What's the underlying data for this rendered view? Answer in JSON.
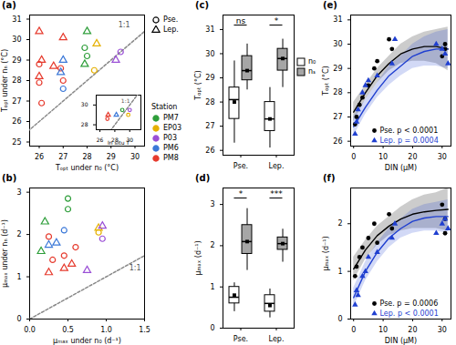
{
  "chart_data": [
    {
      "type": "scatter",
      "title": "(a)",
      "xlabel": "Tₒₚₜ under n₀ (°C)",
      "ylabel": "Tₒₚₜ under nₙ (°C)",
      "xlim": [
        25.6,
        30.4
      ],
      "ylim": [
        24.8,
        31.2
      ],
      "xticks": [
        26,
        27,
        28,
        29,
        30
      ],
      "yticks": [
        25,
        26,
        27,
        28,
        29,
        30,
        31
      ],
      "reference_line": "1:1",
      "legend": "right",
      "legend_title": "Station",
      "taxa": [
        {
          "name": "Pse.",
          "marker": "circle"
        },
        {
          "name": "Lep.",
          "marker": "triangle"
        }
      ],
      "stations": [
        {
          "name": "PM7",
          "color": "#2e9e3a"
        },
        {
          "name": "EP03",
          "color": "#e5b000"
        },
        {
          "name": "P03",
          "color": "#9a4fd6"
        },
        {
          "name": "PM6",
          "color": "#3b78d8"
        },
        {
          "name": "PM8",
          "color": "#e63b2e"
        }
      ],
      "points": [
        {
          "station": "PM8",
          "taxon": "Pse.",
          "x": 26.0,
          "y": 28.8
        },
        {
          "station": "PM8",
          "taxon": "Pse.",
          "x": 26.0,
          "y": 27.9
        },
        {
          "station": "PM8",
          "taxon": "Pse.",
          "x": 26.9,
          "y": 28.6
        },
        {
          "station": "PM8",
          "taxon": "Pse.",
          "x": 27.0,
          "y": 28.0
        },
        {
          "station": "PM8",
          "taxon": "Pse.",
          "x": 26.1,
          "y": 26.9
        },
        {
          "station": "PM7",
          "taxon": "Pse.",
          "x": 27.9,
          "y": 29.6
        },
        {
          "station": "PM7",
          "taxon": "Pse.",
          "x": 28.0,
          "y": 29.2
        },
        {
          "station": "PM6",
          "taxon": "Pse.",
          "x": 27.0,
          "y": 27.6
        },
        {
          "station": "EP03",
          "taxon": "Pse.",
          "x": 28.3,
          "y": 28.5
        },
        {
          "station": "P03",
          "taxon": "Pse.",
          "x": 29.4,
          "y": 29.4
        },
        {
          "station": "PM8",
          "taxon": "Lep.",
          "x": 26.0,
          "y": 30.4
        },
        {
          "station": "PM8",
          "taxon": "Lep.",
          "x": 26.1,
          "y": 29.0
        },
        {
          "station": "PM8",
          "taxon": "Lep.",
          "x": 26.6,
          "y": 28.7
        },
        {
          "station": "PM8",
          "taxon": "Lep.",
          "x": 27.0,
          "y": 30.1
        },
        {
          "station": "PM8",
          "taxon": "Lep.",
          "x": 26.0,
          "y": 28.2
        },
        {
          "station": "PM7",
          "taxon": "Lep.",
          "x": 27.9,
          "y": 28.8
        },
        {
          "station": "PM7",
          "taxon": "Lep.",
          "x": 28.0,
          "y": 30.4
        },
        {
          "station": "PM6",
          "taxon": "Lep.",
          "x": 27.0,
          "y": 29.0
        },
        {
          "station": "PM6",
          "taxon": "Lep.",
          "x": 26.9,
          "y": 28.4
        },
        {
          "station": "EP03",
          "taxon": "Lep.",
          "x": 28.4,
          "y": 29.8
        },
        {
          "station": "P03",
          "taxon": "Lep.",
          "x": 29.2,
          "y": 29.0
        }
      ],
      "inset": {
        "xlabel": "In situ T",
        "xlim": [
          25.5,
          31.5
        ],
        "ylim": [
          27.5,
          31
        ],
        "xticks": [
          26,
          28,
          30
        ],
        "yticks": [
          28,
          30
        ],
        "reference_line": "1:1",
        "points": [
          {
            "station": "PM8",
            "taxon": "Pse.",
            "x": 27.0,
            "y": 28.6
          },
          {
            "station": "PM8",
            "taxon": "Lep.",
            "x": 27.1,
            "y": 29.0
          },
          {
            "station": "PM7",
            "taxon": "Pse.",
            "x": 29.0,
            "y": 29.5
          },
          {
            "station": "EP03",
            "taxon": "Pse.",
            "x": 29.8,
            "y": 29.0
          },
          {
            "station": "P03",
            "taxon": "Pse.",
            "x": 30.0,
            "y": 29.5
          },
          {
            "station": "PM6",
            "taxon": "Lep.",
            "x": 28.2,
            "y": 29.0
          }
        ]
      }
    },
    {
      "type": "scatter",
      "title": "(b)",
      "xlabel": "μₘₐₓ under n₀ (d⁻¹)",
      "ylabel": "μₘₐₓ under nₙ (d⁻¹)",
      "xlim": [
        0,
        1.5
      ],
      "ylim": [
        0,
        3.1
      ],
      "xticks": [
        {
          "value": 0,
          "label": "0.0"
        },
        0.5,
        {
          "value": 1,
          "label": "1.0"
        },
        1.5
      ],
      "yticks": [
        0,
        1,
        2,
        3
      ],
      "reference_line": "1:1",
      "taxa": [
        {
          "name": "Pse.",
          "marker": "circle"
        },
        {
          "name": "Lep.",
          "marker": "triangle"
        }
      ],
      "stations": [
        {
          "name": "PM7",
          "color": "#2e9e3a"
        },
        {
          "name": "EP03",
          "color": "#e5b000"
        },
        {
          "name": "P03",
          "color": "#9a4fd6"
        },
        {
          "name": "PM6",
          "color": "#3b78d8"
        },
        {
          "name": "PM8",
          "color": "#e63b2e"
        }
      ],
      "points": [
        {
          "station": "PM7",
          "taxon": "Pse.",
          "x": 0.5,
          "y": 2.85
        },
        {
          "station": "PM7",
          "taxon": "Pse.",
          "x": 0.5,
          "y": 2.6
        },
        {
          "station": "PM8",
          "taxon": "Pse.",
          "x": 0.25,
          "y": 1.95
        },
        {
          "station": "PM8",
          "taxon": "Pse.",
          "x": 0.45,
          "y": 1.5
        },
        {
          "station": "PM8",
          "taxon": "Pse.",
          "x": 0.3,
          "y": 1.4
        },
        {
          "station": "PM8",
          "taxon": "Pse.",
          "x": 0.6,
          "y": 1.7
        },
        {
          "station": "EP03",
          "taxon": "Pse.",
          "x": 0.9,
          "y": 2.05
        },
        {
          "station": "P03",
          "taxon": "Pse.",
          "x": 0.95,
          "y": 1.9
        },
        {
          "station": "PM6",
          "taxon": "Pse.",
          "x": 0.45,
          "y": 2.1
        },
        {
          "station": "PM7",
          "taxon": "Lep.",
          "x": 0.2,
          "y": 2.3
        },
        {
          "station": "PM7",
          "taxon": "Lep.",
          "x": 0.15,
          "y": 1.6
        },
        {
          "station": "PM8",
          "taxon": "Lep.",
          "x": 0.25,
          "y": 1.1
        },
        {
          "station": "PM8",
          "taxon": "Lep.",
          "x": 0.45,
          "y": 1.2
        },
        {
          "station": "PM8",
          "taxon": "Lep.",
          "x": 0.55,
          "y": 1.3
        },
        {
          "station": "PM6",
          "taxon": "Lep.",
          "x": 0.35,
          "y": 1.8
        },
        {
          "station": "PM6",
          "taxon": "Lep.",
          "x": 0.25,
          "y": 1.75
        },
        {
          "station": "EP03",
          "taxon": "Lep.",
          "x": 0.9,
          "y": 2.15
        },
        {
          "station": "P03",
          "taxon": "Lep.",
          "x": 0.95,
          "y": 2.2
        },
        {
          "station": "P03",
          "taxon": "Lep.",
          "x": 0.75,
          "y": 1.15
        }
      ]
    },
    {
      "type": "box",
      "title": "(c)",
      "ylabel": "Tₒₚₜ (°C)",
      "categories": [
        "Pse.",
        "Lep."
      ],
      "ylim": [
        25.8,
        31.6
      ],
      "yticks": [
        26,
        27,
        28,
        29,
        30,
        31
      ],
      "legend": "right",
      "significance": [
        "ns",
        "*"
      ],
      "series": [
        {
          "name": "n₀",
          "color": "#ffffff",
          "boxes": [
            {
              "min": 26.3,
              "q1": 27.3,
              "median": 28.1,
              "q3": 28.6,
              "max": 29.7,
              "mean": 28.0
            },
            {
              "min": 26.1,
              "q1": 26.8,
              "median": 27.3,
              "q3": 28.0,
              "max": 28.6,
              "mean": 27.3
            }
          ]
        },
        {
          "name": "nₛ",
          "color": "#a6a6a6",
          "boxes": [
            {
              "min": 28.5,
              "q1": 28.9,
              "median": 29.3,
              "q3": 29.9,
              "max": 30.4,
              "mean": 29.3
            },
            {
              "min": 28.6,
              "q1": 29.3,
              "median": 29.8,
              "q3": 30.2,
              "max": 30.6,
              "mean": 29.8
            }
          ]
        }
      ]
    },
    {
      "type": "box",
      "title": "(d)",
      "ylabel": "μₘₐₓ (d⁻¹)",
      "categories": [
        "Pse.",
        "Lep."
      ],
      "ylim": [
        0,
        3.4
      ],
      "yticks": [
        0,
        1,
        2,
        3
      ],
      "significance": [
        "*",
        "***"
      ],
      "series": [
        {
          "name": "n₀",
          "color": "#ffffff",
          "boxes": [
            {
              "min": 0.4,
              "q1": 0.6,
              "median": 0.75,
              "q3": 1.0,
              "max": 1.1,
              "mean": 0.8
            },
            {
              "min": 0.25,
              "q1": 0.4,
              "median": 0.6,
              "q3": 0.8,
              "max": 0.95,
              "mean": 0.55
            }
          ]
        },
        {
          "name": "nₛ",
          "color": "#a6a6a6",
          "boxes": [
            {
              "min": 1.4,
              "q1": 1.8,
              "median": 2.1,
              "q3": 2.5,
              "max": 2.9,
              "mean": 2.1
            },
            {
              "min": 1.6,
              "q1": 1.9,
              "median": 2.05,
              "q3": 2.2,
              "max": 2.4,
              "mean": 2.05
            }
          ]
        }
      ]
    },
    {
      "type": "regression",
      "title": "(e)",
      "xlabel": "DIN (μM)",
      "ylabel": "Tₒₚₜ (°C)",
      "xlim": [
        -1,
        33
      ],
      "ylim": [
        25.8,
        31.2
      ],
      "xticks": [
        0,
        10,
        20,
        30
      ],
      "yticks": [
        26,
        27,
        28,
        29,
        30,
        31
      ],
      "legend": "bottom-right",
      "series": [
        {
          "name": "Pse.",
          "annotation": "p < 0.0001",
          "color": "#000000",
          "marker": "circle",
          "x": [
            0.5,
            1,
            2,
            3,
            5,
            7,
            8,
            12,
            13,
            30,
            31,
            31
          ],
          "values": [
            26.7,
            27.0,
            27.5,
            27.8,
            28.3,
            29.0,
            29.3,
            30.2,
            29.8,
            29.5,
            30.0,
            29.8
          ],
          "fit_x": [
            0,
            4,
            8,
            12,
            16,
            20,
            24,
            28,
            32
          ],
          "fit": [
            27.2,
            28.0,
            28.7,
            29.2,
            29.6,
            29.8,
            29.9,
            29.9,
            29.8
          ],
          "fit_lower": [
            26.8,
            27.7,
            28.4,
            28.9,
            29.2,
            29.3,
            29.3,
            29.2,
            28.9
          ],
          "fit_upper": [
            27.6,
            28.3,
            29.0,
            29.5,
            30.0,
            30.3,
            30.5,
            30.6,
            30.7
          ]
        },
        {
          "name": "Lep.",
          "annotation": "p = 0.0004",
          "color": "#1f3fd0",
          "marker": "triangle",
          "x": [
            0.5,
            1,
            1.5,
            3,
            4,
            5,
            8,
            13,
            14,
            28,
            30,
            31,
            32
          ],
          "values": [
            26.3,
            26.8,
            27.3,
            28.0,
            28.3,
            28.5,
            28.7,
            29.2,
            30.2,
            30.0,
            29.8,
            29.6,
            29.2
          ],
          "fit_x": [
            0,
            4,
            8,
            12,
            16,
            20,
            24,
            28,
            32
          ],
          "fit": [
            26.6,
            27.4,
            28.1,
            28.7,
            29.1,
            29.5,
            29.7,
            29.8,
            29.8
          ],
          "fit_lower": [
            26.2,
            27.1,
            27.8,
            28.3,
            28.7,
            29.0,
            29.1,
            29.1,
            29.0
          ],
          "fit_upper": [
            27.0,
            27.7,
            28.4,
            29.1,
            29.5,
            30.0,
            30.3,
            30.5,
            30.6
          ]
        }
      ]
    },
    {
      "type": "regression",
      "title": "(f)",
      "xlabel": "DIN (μM)",
      "ylabel": "μₘₐₓ (d⁻¹)",
      "xlim": [
        -1,
        33
      ],
      "ylim": [
        0,
        2.75
      ],
      "xticks": [
        0,
        10,
        20,
        30
      ],
      "yticks": [
        0,
        1,
        2
      ],
      "legend": "bottom-right",
      "series": [
        {
          "name": "Pse.",
          "annotation": "p = 0.0006",
          "color": "#000000",
          "marker": "circle",
          "x": [
            0.5,
            1,
            2,
            3,
            5,
            7,
            8,
            12,
            13,
            30,
            31,
            31
          ],
          "values": [
            0.9,
            1.1,
            1.3,
            1.5,
            1.7,
            2.0,
            1.6,
            2.2,
            1.9,
            2.4,
            2.1,
            1.8
          ],
          "fit_x": [
            0,
            4,
            8,
            12,
            16,
            20,
            24,
            28,
            32
          ],
          "fit": [
            1.05,
            1.45,
            1.75,
            1.95,
            2.1,
            2.2,
            2.25,
            2.28,
            2.3
          ],
          "fit_lower": [
            0.8,
            1.25,
            1.55,
            1.75,
            1.85,
            1.9,
            1.9,
            1.9,
            1.85
          ],
          "fit_upper": [
            1.3,
            1.65,
            1.95,
            2.15,
            2.35,
            2.5,
            2.6,
            2.65,
            2.75
          ]
        },
        {
          "name": "Lep.",
          "annotation": "p < 0.0001",
          "color": "#1f3fd0",
          "marker": "triangle",
          "x": [
            0.5,
            1,
            1.5,
            3,
            4,
            5,
            8,
            13,
            14,
            28,
            30,
            31,
            32
          ],
          "values": [
            0.3,
            0.6,
            0.5,
            0.9,
            1.0,
            1.3,
            1.4,
            1.7,
            2.0,
            1.8,
            2.0,
            2.1,
            1.9
          ],
          "fit_x": [
            0,
            4,
            8,
            12,
            16,
            20,
            24,
            28,
            32
          ],
          "fit": [
            0.45,
            1.0,
            1.4,
            1.7,
            1.9,
            2.05,
            2.12,
            2.15,
            2.15
          ],
          "fit_lower": [
            0.25,
            0.8,
            1.2,
            1.5,
            1.7,
            1.8,
            1.85,
            1.85,
            1.8
          ],
          "fit_upper": [
            0.65,
            1.2,
            1.6,
            1.9,
            2.1,
            2.3,
            2.4,
            2.45,
            2.5
          ]
        }
      ]
    }
  ]
}
